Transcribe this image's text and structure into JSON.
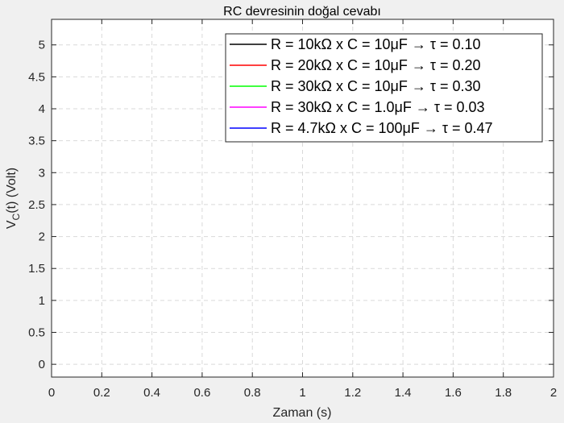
{
  "chart_data": {
    "type": "line",
    "title": "RC devresinin doğal cevabı",
    "xlabel": "Zaman (s)",
    "ylabel": "V_C(t) (Volt)",
    "xlim": [
      0,
      2
    ],
    "ylim": [
      -0.2,
      5.4
    ],
    "xticks": [
      "0",
      "0.2",
      "0.4",
      "0.6",
      "0.8",
      "1",
      "1.2",
      "1.4",
      "1.6",
      "1.8",
      "2"
    ],
    "yticks": [
      "0",
      "0.5",
      "1",
      "1.5",
      "2",
      "2.5",
      "3",
      "3.5",
      "4",
      "4.5",
      "5"
    ],
    "grid": true,
    "legend_position": "top-right",
    "series": [
      {
        "name": "R = 10kΩ  x  C = 10μF  →  τ = 0.10",
        "color": "#000000",
        "tau": 0.1,
        "x": [],
        "y": []
      },
      {
        "name": "R = 20kΩ  x  C = 10μF  →  τ = 0.20",
        "color": "#ff0000",
        "tau": 0.2,
        "x": [],
        "y": []
      },
      {
        "name": "R = 30kΩ  x  C = 10μF  →  τ = 0.30",
        "color": "#00ff00",
        "tau": 0.3,
        "x": [],
        "y": []
      },
      {
        "name": "R = 30kΩ  x  C = 1.0μF  →  τ = 0.03",
        "color": "#ff00ff",
        "tau": 0.03,
        "x": [],
        "y": []
      },
      {
        "name": "R = 4.7kΩ  x  C = 100μF  →  τ = 0.47",
        "color": "#0000ff",
        "tau": 0.47,
        "x": [],
        "y": []
      }
    ]
  }
}
